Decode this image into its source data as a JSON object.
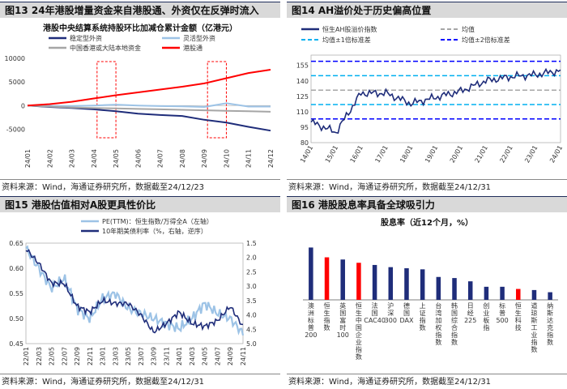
{
  "panels": {
    "p13": {
      "title": "图13 24年港股增量资金来自港股通、外资仅在反弹时流入",
      "source": "资料来源：Wind，海通证券研究所，数据截至24/12/23"
    },
    "p14": {
      "title": "图14 AH溢价处于历史偏高位置",
      "source": "资料来源：Wind，海通证券研究所，数据截至24/12/31"
    },
    "p15": {
      "title": "图15 港股估值相对A股更具性价比",
      "source": "资料来源：Wind，海通证券研究所，数据截至24/12/31"
    },
    "p16": {
      "title": "图16 港股股息率具备全球吸引力",
      "source": "资料来源：Wind，海通证券研究所，数据截至24/12/31"
    }
  },
  "colors": {
    "navy": "#1f2d7a",
    "lightblue": "#9dc3e6",
    "gray": "#a6a6a6",
    "red": "#ff0000",
    "cyan": "#00b0f0",
    "blue": "#0000ff"
  },
  "chart_data": [
    {
      "id": "fig13",
      "type": "line",
      "title": "港股中央结算系统持股环比加减仓累计金额（亿港元）",
      "x": [
        "24/01",
        "24/02",
        "24/03",
        "24/04",
        "24/05",
        "24/06",
        "24/07",
        "24/08",
        "24/09",
        "24/10",
        "24/11",
        "24/12"
      ],
      "ylim": [
        -7500,
        10000
      ],
      "yticks": [
        -5000,
        0,
        5000,
        10000
      ],
      "series": [
        {
          "name": "稳定型外资",
          "color": "#1f2d7a",
          "values": [
            0,
            -300,
            -500,
            -800,
            -1200,
            -1700,
            -2000,
            -2200,
            -3000,
            -3600,
            -4500,
            -5300
          ]
        },
        {
          "name": "灵活型外资",
          "color": "#9dc3e6",
          "values": [
            0,
            -50,
            -100,
            0,
            200,
            0,
            -100,
            -150,
            -300,
            500,
            -200,
            -200
          ]
        },
        {
          "name": "中国香港或大陆本地资金",
          "color": "#a6a6a6",
          "values": [
            0,
            -200,
            -400,
            -500,
            -600,
            -700,
            -800,
            -900,
            -1000,
            -1100,
            -1200,
            -1300
          ]
        },
        {
          "name": "港股通",
          "color": "#ff0000",
          "values": [
            0,
            300,
            800,
            1500,
            2200,
            2800,
            3400,
            4000,
            4700,
            5800,
            6900,
            7600
          ]
        }
      ],
      "highlights": [
        [
          "24/04",
          "24/05"
        ],
        [
          "24/09",
          "24/10"
        ]
      ],
      "legend": "top"
    },
    {
      "id": "fig14",
      "type": "line",
      "title": "",
      "x": [
        "14/01",
        "15/01",
        "16/01",
        "17/01",
        "18/01",
        "19/01",
        "20/01",
        "21/01",
        "22/01",
        "23/01",
        "24/01"
      ],
      "ylim": [
        80,
        165
      ],
      "yticks": [
        80,
        95,
        110,
        125,
        140,
        155
      ],
      "series": [
        {
          "name": "恒生AH股溢价指数",
          "color": "#1f2d7a",
          "values": [
            100,
            90,
            128,
            128,
            118,
            124,
            130,
            140,
            144,
            146,
            150
          ]
        }
      ],
      "reference_lines": [
        {
          "name": "均值",
          "value": 131,
          "color": "#a6a6a6"
        },
        {
          "name": "均值±1倍标准差",
          "values": [
            117,
            145
          ],
          "color": "#00b0f0"
        },
        {
          "name": "均值±2倍标准差",
          "values": [
            103,
            159
          ],
          "color": "#0000ff"
        }
      ],
      "legend": "top"
    },
    {
      "id": "fig15",
      "type": "line",
      "title": "",
      "x": [
        "22/01",
        "22/03",
        "22/05",
        "22/07",
        "22/09",
        "22/11",
        "23/01",
        "23/03",
        "23/05",
        "23/07",
        "23/09",
        "23/11",
        "24/01",
        "24/03",
        "24/05",
        "24/07",
        "24/09",
        "24/11"
      ],
      "ylim_left": [
        0.45,
        0.65
      ],
      "yticks_left": [
        0.45,
        0.5,
        0.55,
        0.6,
        0.65
      ],
      "ylim_right_reversed": [
        1.5,
        5.0
      ],
      "yticks_right": [
        1.5,
        2.0,
        2.5,
        3.0,
        3.5,
        4.0,
        4.5,
        5.0
      ],
      "series": [
        {
          "name": "PE(TTM)：恒生指数/万得全A（左轴）",
          "axis": "left",
          "color": "#9dc3e6",
          "values": [
            0.64,
            0.6,
            0.56,
            0.58,
            0.52,
            0.5,
            0.54,
            0.55,
            0.52,
            0.51,
            0.5,
            0.49,
            0.48,
            0.5,
            0.53,
            0.51,
            0.5,
            0.47
          ]
        },
        {
          "name": "10年期美债利率（%，右轴，逆序）",
          "axis": "right",
          "color": "#1f2d7a",
          "values": [
            1.7,
            2.2,
            2.9,
            2.9,
            3.7,
            3.9,
            3.5,
            3.6,
            3.6,
            4.0,
            4.6,
            4.3,
            3.9,
            4.3,
            4.4,
            4.2,
            3.7,
            4.4
          ]
        }
      ],
      "legend": "top"
    },
    {
      "id": "fig16",
      "type": "bar",
      "title": "股息率（近12个月，%）",
      "categories": [
        "澳洲标普200",
        "恒生指数",
        "英国富时100",
        "恒生中国企业指数",
        "法国CAC40",
        "沪深300",
        "德国DAX",
        "上证指数",
        "台湾加权指数",
        "韩国综合指数",
        "日经225",
        "创业板指",
        "标普500",
        "恒生科技",
        "道琼斯工业指数",
        "纳斯达克指数"
      ],
      "values": [
        4.8,
        3.9,
        3.7,
        3.4,
        3.2,
        3.0,
        2.9,
        2.8,
        2.1,
        2.0,
        1.7,
        1.2,
        1.2,
        1.0,
        0.9,
        0.7
      ],
      "colors": [
        "#1f2d7a",
        "#ff0000",
        "#1f2d7a",
        "#ff0000",
        "#1f2d7a",
        "#1f2d7a",
        "#1f2d7a",
        "#1f2d7a",
        "#1f2d7a",
        "#1f2d7a",
        "#1f2d7a",
        "#1f2d7a",
        "#1f2d7a",
        "#ff0000",
        "#1f2d7a",
        "#1f2d7a"
      ],
      "ylim": [
        0,
        5.5
      ]
    }
  ]
}
